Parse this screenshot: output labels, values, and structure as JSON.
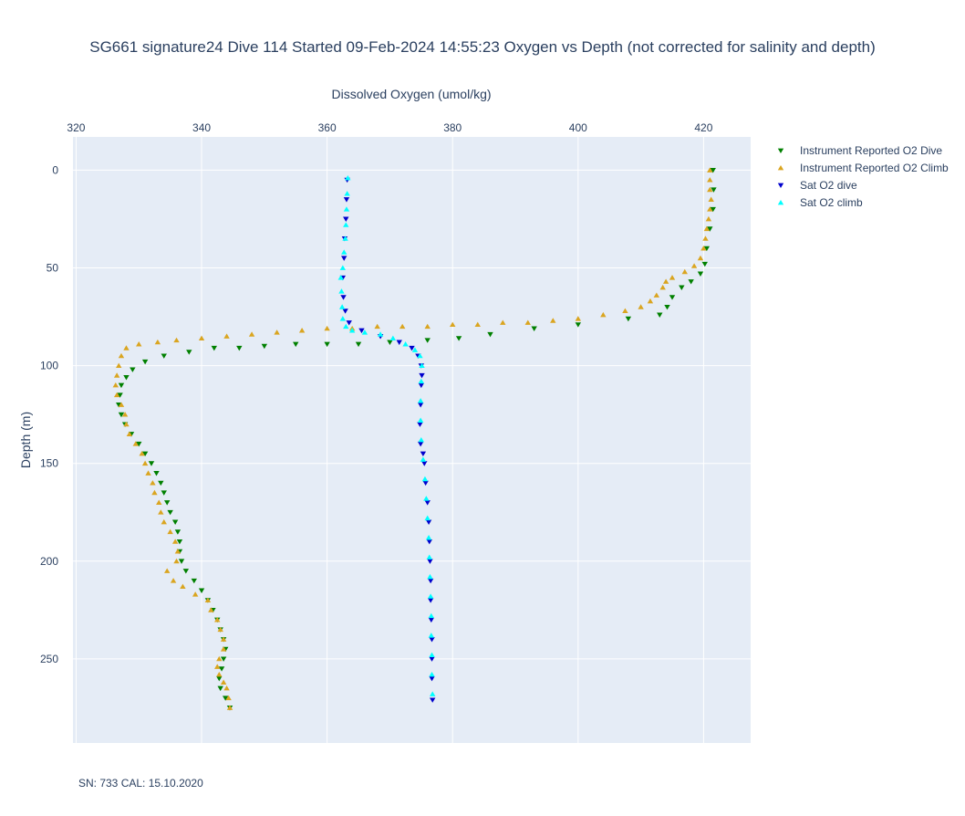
{
  "chart_data": {
    "type": "scatter",
    "title": "SG661 signature24 Dive 114 Started 09-Feb-2024 14:55:23  Oxygen vs Depth (not corrected for salinity and depth)",
    "xlabel": "Dissolved Oxygen (umol/kg)",
    "ylabel": "Depth (m)",
    "xlim": [
      319.5,
      427.5
    ],
    "ylim": [
      293,
      -17
    ],
    "x_axis_side": "top",
    "y_reversed": true,
    "x_ticks": [
      320,
      340,
      360,
      380,
      400,
      420
    ],
    "y_ticks": [
      0,
      50,
      100,
      150,
      200,
      250
    ],
    "grid": true,
    "legend_placement": "top-right outside",
    "series": [
      {
        "name": "Instrument Reported O2 Dive",
        "marker": "triangle-down",
        "color": "#008000",
        "points": [
          [
            421.5,
            0
          ],
          [
            421.6,
            10
          ],
          [
            421.5,
            20
          ],
          [
            421.0,
            30
          ],
          [
            420.5,
            40
          ],
          [
            420.2,
            48
          ],
          [
            419.5,
            53
          ],
          [
            418.0,
            57
          ],
          [
            416.5,
            60
          ],
          [
            415.0,
            65
          ],
          [
            414.2,
            70
          ],
          [
            413.0,
            74
          ],
          [
            408.0,
            76
          ],
          [
            400.0,
            79
          ],
          [
            393.0,
            81
          ],
          [
            386.0,
            84
          ],
          [
            381.0,
            86
          ],
          [
            376.0,
            87
          ],
          [
            370.0,
            88
          ],
          [
            365.0,
            89
          ],
          [
            360.0,
            89
          ],
          [
            355.0,
            89
          ],
          [
            350.0,
            90
          ],
          [
            346.0,
            91
          ],
          [
            342.0,
            91
          ],
          [
            338.0,
            93
          ],
          [
            334.0,
            95
          ],
          [
            331.0,
            98
          ],
          [
            329.0,
            102
          ],
          [
            328.0,
            106
          ],
          [
            327.2,
            110
          ],
          [
            327.0,
            115
          ],
          [
            326.8,
            120
          ],
          [
            327.2,
            125
          ],
          [
            327.8,
            130
          ],
          [
            328.8,
            135
          ],
          [
            330.0,
            140
          ],
          [
            331.0,
            145
          ],
          [
            332.0,
            150
          ],
          [
            332.8,
            155
          ],
          [
            333.5,
            160
          ],
          [
            334.0,
            165
          ],
          [
            334.5,
            170
          ],
          [
            335.0,
            175
          ],
          [
            335.8,
            180
          ],
          [
            336.2,
            185
          ],
          [
            336.5,
            190
          ],
          [
            336.5,
            195
          ],
          [
            336.8,
            200
          ],
          [
            337.5,
            205
          ],
          [
            338.8,
            210
          ],
          [
            340.0,
            215
          ],
          [
            341.0,
            220
          ],
          [
            341.8,
            225
          ],
          [
            342.5,
            230
          ],
          [
            343.0,
            235
          ],
          [
            343.5,
            240
          ],
          [
            343.8,
            245
          ],
          [
            343.5,
            250
          ],
          [
            343.2,
            255
          ],
          [
            342.8,
            260
          ],
          [
            343.0,
            265
          ],
          [
            343.8,
            270
          ],
          [
            344.5,
            275
          ]
        ]
      },
      {
        "name": "Instrument Reported O2 Climb",
        "marker": "triangle-up",
        "color": "#DAA520",
        "points": [
          [
            344.5,
            275
          ],
          [
            344.3,
            270
          ],
          [
            344.0,
            265
          ],
          [
            343.5,
            262
          ],
          [
            342.8,
            258
          ],
          [
            342.5,
            254
          ],
          [
            342.8,
            250
          ],
          [
            343.5,
            245
          ],
          [
            343.5,
            240
          ],
          [
            343.0,
            235
          ],
          [
            342.5,
            230
          ],
          [
            341.5,
            225
          ],
          [
            341.0,
            220
          ],
          [
            339.0,
            217
          ],
          [
            337.0,
            213
          ],
          [
            335.5,
            210
          ],
          [
            334.5,
            205
          ],
          [
            336.0,
            200
          ],
          [
            336.2,
            195
          ],
          [
            335.8,
            190
          ],
          [
            335.0,
            185
          ],
          [
            334.0,
            180
          ],
          [
            333.5,
            175
          ],
          [
            333.2,
            170
          ],
          [
            332.5,
            165
          ],
          [
            332.2,
            160
          ],
          [
            331.5,
            155
          ],
          [
            331.0,
            150
          ],
          [
            330.5,
            145
          ],
          [
            329.5,
            140
          ],
          [
            328.5,
            135
          ],
          [
            328.0,
            130
          ],
          [
            327.8,
            125
          ],
          [
            327.2,
            120
          ],
          [
            326.5,
            115
          ],
          [
            326.3,
            110
          ],
          [
            326.5,
            105
          ],
          [
            326.8,
            100
          ],
          [
            327.2,
            95
          ],
          [
            328.0,
            91
          ],
          [
            330.0,
            89
          ],
          [
            333.0,
            88
          ],
          [
            336.0,
            87
          ],
          [
            340.0,
            86
          ],
          [
            344.0,
            85
          ],
          [
            348.0,
            84
          ],
          [
            352.0,
            83
          ],
          [
            356.0,
            82
          ],
          [
            360.0,
            81
          ],
          [
            364.0,
            81
          ],
          [
            368.0,
            80
          ],
          [
            372.0,
            80
          ],
          [
            376.0,
            80
          ],
          [
            380.0,
            79
          ],
          [
            384.0,
            79
          ],
          [
            388.0,
            78
          ],
          [
            392.0,
            78
          ],
          [
            396.0,
            77
          ],
          [
            400.0,
            76
          ],
          [
            404.0,
            74
          ],
          [
            407.5,
            72
          ],
          [
            410.0,
            70
          ],
          [
            411.5,
            67
          ],
          [
            412.5,
            64
          ],
          [
            413.5,
            60
          ],
          [
            414.0,
            57
          ],
          [
            415.0,
            55
          ],
          [
            417.0,
            52
          ],
          [
            418.5,
            49
          ],
          [
            419.5,
            45
          ],
          [
            420.0,
            40
          ],
          [
            420.3,
            35
          ],
          [
            420.5,
            30
          ],
          [
            420.8,
            25
          ],
          [
            421.0,
            20
          ],
          [
            421.2,
            15
          ],
          [
            421.0,
            10
          ],
          [
            421.0,
            5
          ],
          [
            421.0,
            0
          ]
        ]
      },
      {
        "name": "Sat O2 dive",
        "marker": "triangle-down",
        "color": "#0000CD",
        "points": [
          [
            363.2,
            5
          ],
          [
            363.1,
            15
          ],
          [
            363.0,
            25
          ],
          [
            362.8,
            35
          ],
          [
            362.7,
            45
          ],
          [
            362.5,
            55
          ],
          [
            362.6,
            65
          ],
          [
            362.9,
            72
          ],
          [
            363.5,
            78
          ],
          [
            365.5,
            82
          ],
          [
            368.5,
            85
          ],
          [
            371.5,
            88
          ],
          [
            373.5,
            91
          ],
          [
            374.5,
            95
          ],
          [
            375.0,
            100
          ],
          [
            375.1,
            105
          ],
          [
            375.0,
            110
          ],
          [
            374.9,
            120
          ],
          [
            374.8,
            130
          ],
          [
            374.9,
            140
          ],
          [
            375.3,
            145
          ],
          [
            375.5,
            150
          ],
          [
            375.7,
            160
          ],
          [
            376.0,
            170
          ],
          [
            376.2,
            180
          ],
          [
            376.3,
            190
          ],
          [
            376.4,
            200
          ],
          [
            376.5,
            210
          ],
          [
            376.5,
            220
          ],
          [
            376.6,
            230
          ],
          [
            376.7,
            240
          ],
          [
            376.7,
            250
          ],
          [
            376.7,
            260
          ],
          [
            376.8,
            271
          ]
        ]
      },
      {
        "name": "Sat O2 climb",
        "marker": "triangle-up",
        "color": "#00FFFF",
        "points": [
          [
            376.8,
            268
          ],
          [
            376.7,
            258
          ],
          [
            376.7,
            248
          ],
          [
            376.6,
            238
          ],
          [
            376.6,
            228
          ],
          [
            376.5,
            218
          ],
          [
            376.4,
            208
          ],
          [
            376.3,
            198
          ],
          [
            376.2,
            188
          ],
          [
            376.0,
            178
          ],
          [
            375.8,
            168
          ],
          [
            375.6,
            158
          ],
          [
            375.3,
            148
          ],
          [
            375.0,
            138
          ],
          [
            374.9,
            128
          ],
          [
            374.9,
            118
          ],
          [
            375.0,
            108
          ],
          [
            375.1,
            100
          ],
          [
            374.8,
            95
          ],
          [
            374.0,
            92
          ],
          [
            372.5,
            89
          ],
          [
            370.5,
            86
          ],
          [
            368.5,
            84
          ],
          [
            366.0,
            83
          ],
          [
            364.0,
            82
          ],
          [
            363.0,
            80
          ],
          [
            362.5,
            76
          ],
          [
            362.4,
            70
          ],
          [
            362.3,
            62
          ],
          [
            362.2,
            55
          ],
          [
            362.5,
            50
          ],
          [
            362.7,
            42
          ],
          [
            362.9,
            35
          ],
          [
            363.0,
            28
          ],
          [
            363.1,
            20
          ],
          [
            363.2,
            12
          ],
          [
            363.3,
            4
          ]
        ]
      }
    ]
  },
  "footer": {
    "note": "SN: 733  CAL: 15.10.2020"
  }
}
